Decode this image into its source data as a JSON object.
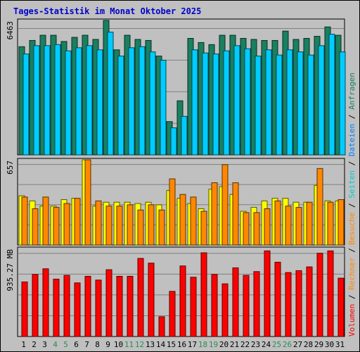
{
  "chart_data": [
    {
      "type": "bar",
      "title": "Tages-Statistik im Monat Oktober 2025",
      "panel": "top",
      "y_max_label": "6463",
      "ylim": [
        0,
        6463
      ],
      "series": [
        {
          "name": "Anfragen",
          "color": "#1a8060",
          "values": [
            5200,
            5500,
            5750,
            5750,
            5450,
            5650,
            5750,
            5550,
            6463,
            5050,
            5750,
            5550,
            5500,
            4750,
            1600,
            2600,
            5600,
            5400,
            5300,
            5750,
            5750,
            5600,
            5550,
            5500,
            5500,
            5950,
            5550,
            5600,
            5700,
            6150,
            5750
          ]
        },
        {
          "name": "Dateien",
          "color": "#00ccff",
          "values": [
            4850,
            5250,
            5250,
            5300,
            5000,
            5150,
            5250,
            5050,
            5900,
            4750,
            5150,
            5200,
            4950,
            4550,
            1300,
            1850,
            5050,
            4900,
            4850,
            5000,
            5250,
            5100,
            4750,
            5050,
            4800,
            5050,
            4950,
            4800,
            5250,
            5800,
            4950
          ]
        }
      ]
    },
    {
      "type": "bar",
      "panel": "middle",
      "y_max_label": "657",
      "ylim": [
        0,
        657
      ],
      "series": [
        {
          "name": "Seiten",
          "color": "#ffff00",
          "values": [
            380,
            340,
            300,
            300,
            350,
            360,
            657,
            300,
            330,
            330,
            330,
            320,
            330,
            310,
            420,
            360,
            320,
            280,
            430,
            450,
            390,
            260,
            290,
            340,
            360,
            360,
            330,
            330,
            460,
            340,
            340
          ]
        },
        {
          "name": "Besuche",
          "color": "#ff8800",
          "values": [
            370,
            280,
            370,
            290,
            320,
            360,
            657,
            340,
            300,
            300,
            310,
            270,
            310,
            270,
            510,
            390,
            370,
            260,
            480,
            620,
            480,
            250,
            250,
            280,
            340,
            300,
            290,
            330,
            590,
            330,
            350
          ]
        }
      ]
    },
    {
      "type": "bar",
      "panel": "bottom",
      "y_max_label": "935.27 MB",
      "ylim": [
        0,
        935.27
      ],
      "series": [
        {
          "name": "Volumen",
          "color": "#ff0000",
          "values": [
            580,
            660,
            720,
            610,
            650,
            570,
            640,
            600,
            710,
            640,
            640,
            830,
            780,
            210,
            480,
            750,
            630,
            890,
            660,
            560,
            730,
            650,
            690,
            910,
            790,
            680,
            700,
            740,
            885,
            910,
            620
          ]
        }
      ]
    }
  ],
  "x_labels": [
    "1",
    "2",
    "3",
    "4",
    "5",
    "6",
    "7",
    "8",
    "9",
    "10",
    "11",
    "12",
    "13",
    "14",
    "15",
    "16",
    "17",
    "18",
    "19",
    "20",
    "21",
    "22",
    "23",
    "24",
    "25",
    "26",
    "27",
    "28",
    "29",
    "30",
    "31"
  ],
  "weekend_days": [
    "4",
    "5",
    "11",
    "12",
    "18",
    "19",
    "25",
    "26"
  ],
  "colors": {
    "weekday_label": "#000000",
    "weekend_label": "#2e8b57",
    "title": "#0000cc",
    "separator": "#000000"
  },
  "legend": {
    "upper": [
      {
        "text": "Anfragen",
        "color": "#1a8060"
      },
      {
        "text": "/",
        "color": "#000000"
      },
      {
        "text": "Dateien",
        "color": "#0080ff"
      },
      {
        "text": "/",
        "color": "#000000"
      },
      {
        "text": "Seiten",
        "color": "#00cccc"
      },
      {
        "text": "/",
        "color": "#000000"
      },
      {
        "text": "Besuche",
        "color": "#ff8800"
      }
    ],
    "lower": [
      {
        "text": "/",
        "color": "#000000"
      },
      {
        "text": "Rechner",
        "color": "#ff8800"
      },
      {
        "text": "/",
        "color": "#000000"
      },
      {
        "text": "Volumen",
        "color": "#ff0000"
      }
    ]
  }
}
